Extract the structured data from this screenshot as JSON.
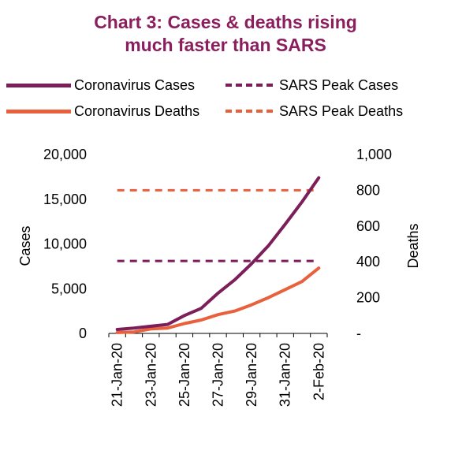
{
  "colors": {
    "title": "#8B1F5E",
    "cases": "#7B1E5A",
    "deaths": "#E8613C"
  },
  "title_lines": [
    "Chart 3: Cases & deaths rising",
    "much faster than SARS"
  ],
  "legend": [
    {
      "label": "Coronavirus Cases",
      "style": "solid",
      "color": "#7B1E5A"
    },
    {
      "label": "SARS Peak Cases",
      "style": "dashed",
      "color": "#7B1E5A"
    },
    {
      "label": "Coronavirus Deaths",
      "style": "solid",
      "color": "#E8613C"
    },
    {
      "label": "SARS Peak Deaths",
      "style": "dashed",
      "color": "#E8613C"
    }
  ],
  "chart_data": {
    "type": "line",
    "title": "Chart 3: Cases & deaths rising much faster than SARS",
    "ylabel": "Cases",
    "y2label": "Deaths",
    "ylim": [
      0,
      20000
    ],
    "y2lim": [
      0,
      1000
    ],
    "y_ticks": [
      "0",
      "5,000",
      "10,000",
      "15,000",
      "20,000"
    ],
    "y2_ticks": [
      "-",
      "200",
      "400",
      "600",
      "800",
      "1,000"
    ],
    "x_tick_labels": [
      "21-Jan-20",
      "23-Jan-20",
      "25-Jan-20",
      "27-Jan-20",
      "29-Jan-20",
      "31-Jan-20",
      "2-Feb-20"
    ],
    "x": [
      "21-Jan-20",
      "22-Jan-20",
      "23-Jan-20",
      "24-Jan-20",
      "25-Jan-20",
      "26-Jan-20",
      "27-Jan-20",
      "28-Jan-20",
      "29-Jan-20",
      "30-Jan-20",
      "31-Jan-20",
      "1-Feb-20",
      "2-Feb-20"
    ],
    "grid": false,
    "legend_position": "top",
    "series": [
      {
        "name": "Coronavirus Cases",
        "axis": "left",
        "style": "solid",
        "values": [
          440,
          600,
          800,
          1000,
          2000,
          2800,
          4500,
          6000,
          7800,
          9800,
          12200,
          14700,
          17400
        ]
      },
      {
        "name": "Coronavirus Deaths",
        "axis": "right",
        "style": "solid",
        "values": [
          5,
          8,
          25,
          30,
          55,
          75,
          105,
          125,
          160,
          200,
          245,
          290,
          365
        ]
      },
      {
        "name": "SARS Peak Cases",
        "axis": "left",
        "style": "dashed",
        "values": [
          8100,
          8100,
          8100,
          8100,
          8100,
          8100,
          8100,
          8100,
          8100,
          8100,
          8100,
          8100,
          8100
        ]
      },
      {
        "name": "SARS Peak Deaths",
        "axis": "right",
        "style": "dashed",
        "values": [
          800,
          800,
          800,
          800,
          800,
          800,
          800,
          800,
          800,
          800,
          800,
          800,
          800
        ]
      }
    ]
  }
}
